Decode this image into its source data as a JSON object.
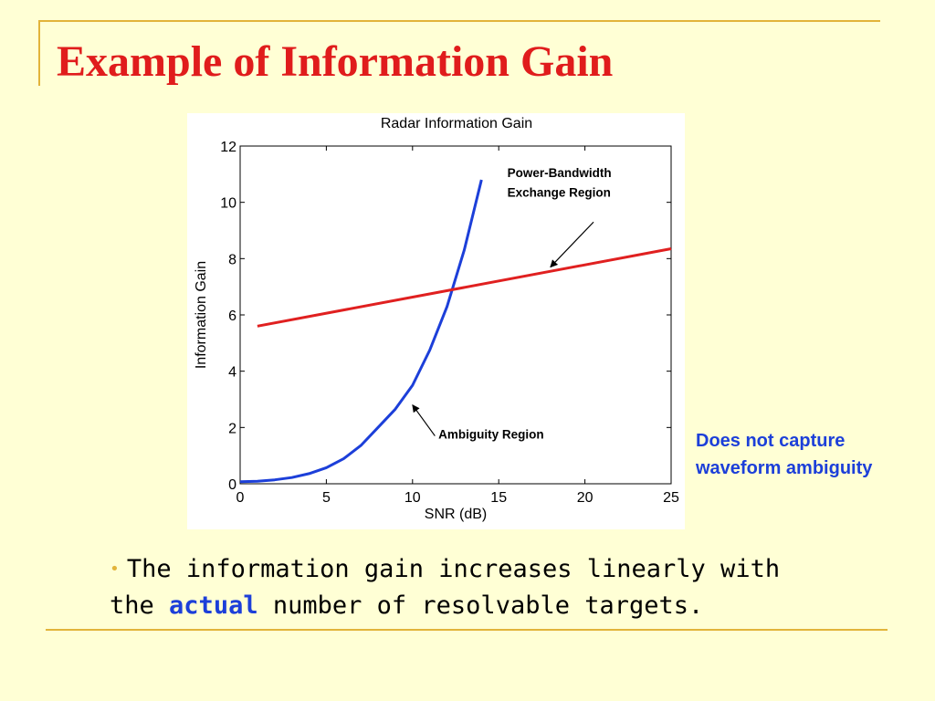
{
  "slide": {
    "title": "Example of Information Gain",
    "side_note_line1": "Does not capture",
    "side_note_line2": "waveform ambiguity",
    "bullet": {
      "prefix": "The information gain increases linearly with",
      "line2_start": "the",
      "emphasis": "actual",
      "suffix": "number of resolvable targets."
    }
  },
  "colors": {
    "background": "#FFFFD5",
    "title": "#E01C1C",
    "accent_blue": "#1C3FD9",
    "frame_lines": "#E2B43A",
    "bullet_dot": "#E2B43A"
  },
  "chart_data": {
    "type": "line",
    "title": "Radar Information Gain",
    "xlabel": "SNR (dB)",
    "ylabel": "Information Gain",
    "xlim": [
      0,
      25
    ],
    "ylim": [
      0,
      12
    ],
    "xticks": [
      0,
      5,
      10,
      15,
      20,
      25
    ],
    "yticks": [
      0,
      2,
      4,
      6,
      8,
      10,
      12
    ],
    "grid": false,
    "series": [
      {
        "color": "#1C3FD9",
        "x": [
          0,
          1,
          2,
          3,
          4,
          5,
          6,
          7,
          8,
          9,
          10,
          11,
          12,
          13,
          14
        ],
        "y": [
          0.07,
          0.09,
          0.14,
          0.22,
          0.36,
          0.57,
          0.89,
          1.36,
          2.0,
          2.65,
          3.5,
          4.75,
          6.3,
          8.3,
          10.8
        ]
      },
      {
        "color": "#E02020",
        "x": [
          1,
          25
        ],
        "y": [
          5.6,
          8.35
        ]
      }
    ],
    "annotations": [
      {
        "text": "Power-Bandwidth",
        "x": 15.5,
        "y": 10.9
      },
      {
        "text": "Exchange Region",
        "x": 15.5,
        "y": 10.2
      },
      {
        "text": "Ambiguity Region",
        "x": 11.5,
        "y": 1.6
      }
    ],
    "arrows": [
      {
        "from": [
          20.5,
          9.3
        ],
        "to": [
          18.0,
          7.7
        ]
      },
      {
        "from": [
          11.3,
          1.7
        ],
        "to": [
          10.0,
          2.8
        ]
      }
    ]
  }
}
